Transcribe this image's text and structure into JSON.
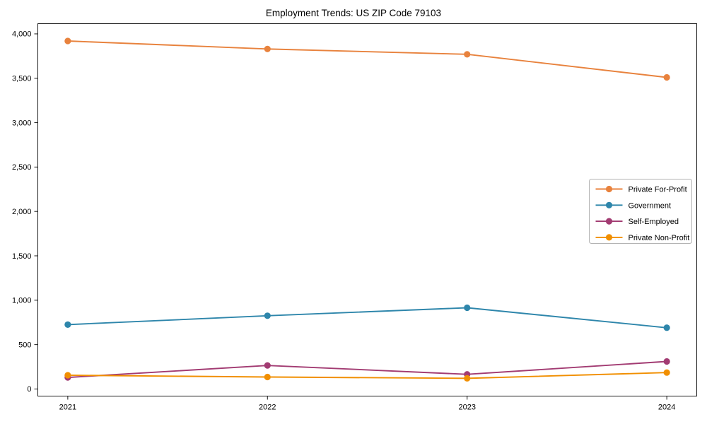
{
  "figure": {
    "background_color": "#ffffff"
  },
  "chart_data": {
    "type": "line",
    "title": "Employment Trends: US ZIP Code 79103",
    "xlabel": "",
    "ylabel": "",
    "x": [
      2021,
      2022,
      2023,
      2024
    ],
    "x_tick_labels": [
      "2021",
      "2022",
      "2023",
      "2024"
    ],
    "series": [
      {
        "name": "Private For-Profit",
        "color": "#E8823D",
        "values": [
          3920,
          3830,
          3770,
          3510
        ]
      },
      {
        "name": "Government",
        "color": "#2E86AB",
        "values": [
          725,
          825,
          915,
          690
        ]
      },
      {
        "name": "Self-Employed",
        "color": "#A23B72",
        "values": [
          130,
          265,
          165,
          310
        ]
      },
      {
        "name": "Private Non-Profit",
        "color": "#F18F01",
        "values": [
          155,
          135,
          120,
          185
        ]
      }
    ],
    "yticks": [
      0,
      500,
      1000,
      1500,
      2000,
      2500,
      3000,
      3500,
      4000
    ],
    "ytick_labels": [
      "0",
      "500",
      "1,000",
      "1,500",
      "2,000",
      "2,500",
      "3,000",
      "3,500",
      "4,000"
    ],
    "xlim": [
      2020.85,
      2024.15
    ],
    "ylim": [
      -80,
      4115
    ],
    "grid": false,
    "legend_position": "right",
    "axis_color": "#1a1a1a",
    "tick_label_color": "#1a1a1a",
    "legend_border_color": "#b3b3b3",
    "legend_background": "#ffffff"
  }
}
